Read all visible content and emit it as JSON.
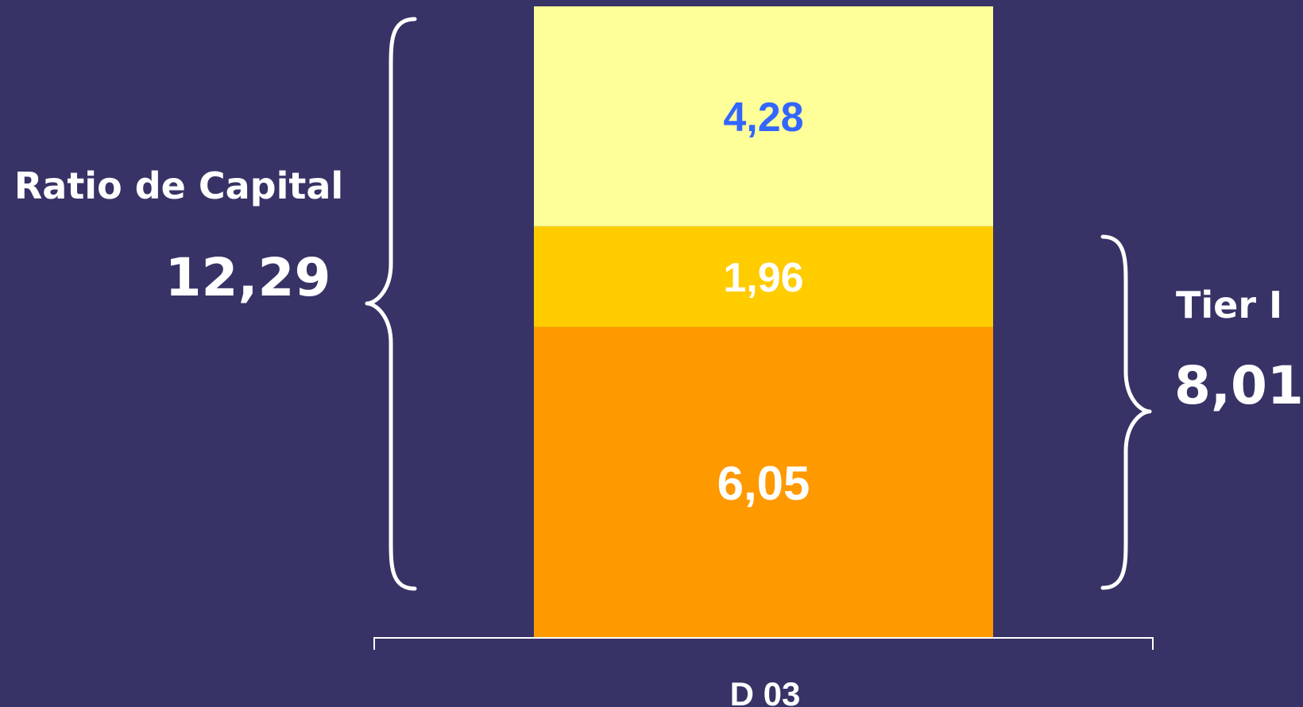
{
  "chart_data": {
    "type": "bar",
    "stacked": true,
    "categories": [
      "D 03"
    ],
    "series": [
      {
        "values": [
          6.05
        ],
        "label": "6,05",
        "color": "#ff9900",
        "label_color": "#ffffff"
      },
      {
        "values": [
          1.96
        ],
        "label": "1,96",
        "color": "#ffcc00",
        "label_color": "#ffffff"
      },
      {
        "values": [
          4.28
        ],
        "label": "4,28",
        "color": "#ffff99",
        "label_color": "#3366ff"
      }
    ],
    "ylim": [
      0,
      12.29
    ],
    "grid": false,
    "legend": "none",
    "annotations": [
      {
        "title": "Ratio de Capital",
        "value": "12,29",
        "side": "left",
        "spans_series": [
          0,
          1,
          2
        ]
      },
      {
        "title": "Tier I",
        "value": "8,01",
        "side": "right",
        "spans_series": [
          0,
          1
        ]
      }
    ]
  },
  "colors": {
    "background": "#373366",
    "text": "#ffffff",
    "bracket": "#ffffff"
  }
}
